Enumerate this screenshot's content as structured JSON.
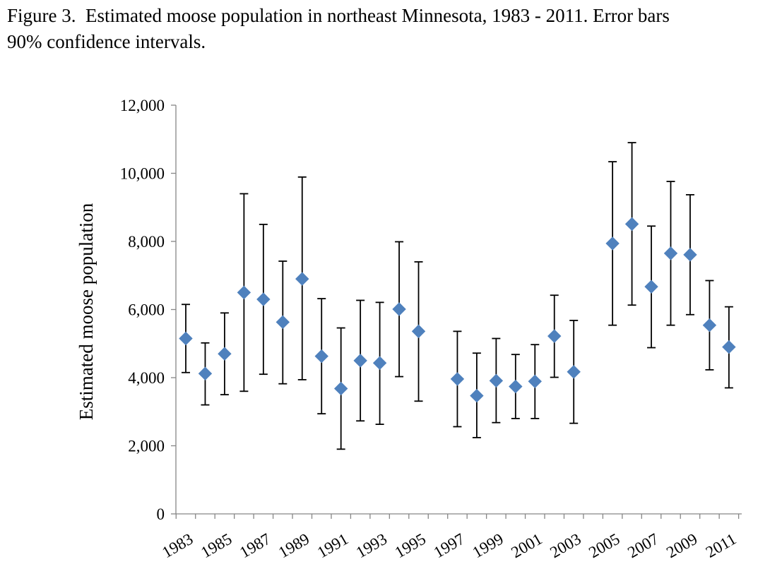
{
  "figure": {
    "caption": "Figure 3.  Estimated moose population in northeast Minnesota, 1983 - 2011. Error bars\n90% confidence intervals."
  },
  "chart_data": {
    "type": "scatter",
    "title": "",
    "xlabel": "",
    "ylabel": "Estimated moose population",
    "ylim": [
      0,
      12000
    ],
    "xlim": [
      1983,
      2011
    ],
    "yticks": [
      "0",
      "2,000",
      "4,000",
      "6,000",
      "8,000",
      "10,000",
      "12,000"
    ],
    "xtick_labels": [
      "1983",
      "1985",
      "1987",
      "1989",
      "1991",
      "1993",
      "1995",
      "1997",
      "1999",
      "2001",
      "2003",
      "2005",
      "2007",
      "2009",
      "2011"
    ],
    "grid": false,
    "legend": "none",
    "marker_color": "#4f81bd",
    "series": [
      {
        "points": [
          {
            "year": 1983,
            "estimate": 5150,
            "lower": 4150,
            "upper": 6150
          },
          {
            "year": 1984,
            "estimate": 4120,
            "lower": 3200,
            "upper": 5020
          },
          {
            "year": 1985,
            "estimate": 4700,
            "lower": 3500,
            "upper": 5900
          },
          {
            "year": 1986,
            "estimate": 6500,
            "lower": 3600,
            "upper": 9400
          },
          {
            "year": 1987,
            "estimate": 6300,
            "lower": 4100,
            "upper": 8500
          },
          {
            "year": 1988,
            "estimate": 5630,
            "lower": 3820,
            "upper": 7420
          },
          {
            "year": 1989,
            "estimate": 6900,
            "lower": 3940,
            "upper": 9890
          },
          {
            "year": 1990,
            "estimate": 4630,
            "lower": 2940,
            "upper": 6320
          },
          {
            "year": 1991,
            "estimate": 3680,
            "lower": 1900,
            "upper": 5460
          },
          {
            "year": 1992,
            "estimate": 4500,
            "lower": 2730,
            "upper": 6270
          },
          {
            "year": 1993,
            "estimate": 4430,
            "lower": 2630,
            "upper": 6210
          },
          {
            "year": 1994,
            "estimate": 6010,
            "lower": 4030,
            "upper": 7990
          },
          {
            "year": 1995,
            "estimate": 5360,
            "lower": 3310,
            "upper": 7400
          },
          {
            "year": 1997,
            "estimate": 3960,
            "lower": 2560,
            "upper": 5360
          },
          {
            "year": 1998,
            "estimate": 3470,
            "lower": 2240,
            "upper": 4720
          },
          {
            "year": 1999,
            "estimate": 3910,
            "lower": 2680,
            "upper": 5150
          },
          {
            "year": 2000,
            "estimate": 3740,
            "lower": 2800,
            "upper": 4680
          },
          {
            "year": 2001,
            "estimate": 3890,
            "lower": 2800,
            "upper": 4970
          },
          {
            "year": 2002,
            "estimate": 5220,
            "lower": 4010,
            "upper": 6420
          },
          {
            "year": 2003,
            "estimate": 4170,
            "lower": 2660,
            "upper": 5680
          },
          {
            "year": 2005,
            "estimate": 7940,
            "lower": 5540,
            "upper": 10340
          },
          {
            "year": 2006,
            "estimate": 8510,
            "lower": 6130,
            "upper": 10900
          },
          {
            "year": 2007,
            "estimate": 6670,
            "lower": 4880,
            "upper": 8450
          },
          {
            "year": 2008,
            "estimate": 7650,
            "lower": 5540,
            "upper": 9760
          },
          {
            "year": 2009,
            "estimate": 7610,
            "lower": 5850,
            "upper": 9370
          },
          {
            "year": 2010,
            "estimate": 5540,
            "lower": 4230,
            "upper": 6850
          },
          {
            "year": 2011,
            "estimate": 4900,
            "lower": 3700,
            "upper": 6080
          }
        ]
      }
    ]
  }
}
